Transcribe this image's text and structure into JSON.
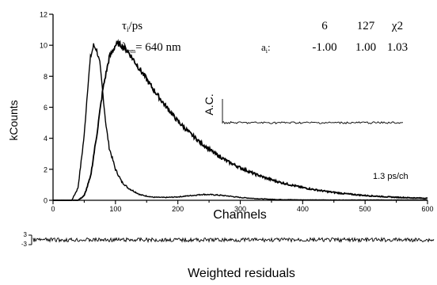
{
  "chart_data": {
    "type": "line",
    "xlabel": "Channels",
    "ylabel": "kCounts",
    "xlim": [
      0,
      600
    ],
    "ylim": [
      0,
      12
    ],
    "x_ticks": [
      0,
      100,
      200,
      300,
      400,
      500,
      600
    ],
    "y_ticks": [
      0,
      2,
      4,
      6,
      8,
      10,
      12
    ],
    "x_tick_labels": [
      "0",
      "100",
      "200",
      "300",
      "400",
      "500",
      "600"
    ],
    "y_tick_labels": [
      "0",
      "2",
      "4",
      "6",
      "8",
      "10",
      "12"
    ],
    "series": [
      {
        "points": [
          [
            0,
            0
          ],
          [
            30,
            0
          ],
          [
            40,
            0.8
          ],
          [
            50,
            4.2
          ],
          [
            55,
            7
          ],
          [
            60,
            9.2
          ],
          [
            65,
            10
          ],
          [
            70,
            9.7
          ],
          [
            75,
            8.8
          ],
          [
            80,
            6.8
          ],
          [
            85,
            4.8
          ],
          [
            90,
            3.4
          ],
          [
            100,
            2.0
          ],
          [
            110,
            1.2
          ],
          [
            120,
            0.8
          ],
          [
            140,
            0.35
          ],
          [
            160,
            0.2
          ],
          [
            180,
            0.18
          ],
          [
            200,
            0.22
          ],
          [
            220,
            0.3
          ],
          [
            240,
            0.38
          ],
          [
            260,
            0.35
          ],
          [
            280,
            0.28
          ],
          [
            300,
            0.18
          ],
          [
            330,
            0.1
          ],
          [
            360,
            0.05
          ],
          [
            400,
            0.03
          ],
          [
            450,
            0.02
          ],
          [
            500,
            0.02
          ],
          [
            600,
            0.02
          ]
        ]
      },
      {
        "points": [
          [
            0,
            0
          ],
          [
            40,
            0
          ],
          [
            50,
            0.3
          ],
          [
            60,
            1.5
          ],
          [
            70,
            4.2
          ],
          [
            80,
            7.2
          ],
          [
            90,
            9.2
          ],
          [
            100,
            10.0
          ],
          [
            105,
            10.1
          ],
          [
            110,
            10.0
          ],
          [
            120,
            9.6
          ],
          [
            130,
            9.0
          ],
          [
            140,
            8.4
          ],
          [
            150,
            7.8
          ],
          [
            160,
            7.2
          ],
          [
            180,
            6.1
          ],
          [
            200,
            5.1
          ],
          [
            220,
            4.3
          ],
          [
            240,
            3.6
          ],
          [
            260,
            3.0
          ],
          [
            280,
            2.5
          ],
          [
            300,
            2.1
          ],
          [
            320,
            1.75
          ],
          [
            340,
            1.45
          ],
          [
            360,
            1.2
          ],
          [
            380,
            1.0
          ],
          [
            400,
            0.82
          ],
          [
            420,
            0.68
          ],
          [
            440,
            0.56
          ],
          [
            460,
            0.46
          ],
          [
            480,
            0.38
          ],
          [
            500,
            0.31
          ],
          [
            520,
            0.26
          ],
          [
            540,
            0.21
          ],
          [
            560,
            0.18
          ],
          [
            580,
            0.15
          ],
          [
            600,
            0.13
          ]
        ]
      }
    ],
    "annotations": {
      "tau_label": "τ",
      "tau_sub": "i",
      "tau_unit": "/ps",
      "lambda_label": "λ",
      "lambda_sub": "em",
      "lambda_value": "= 640 nm",
      "a_label": "a",
      "a_sub": "i",
      "a_colon": ":",
      "tau_values": [
        "6",
        "127",
        "χ2"
      ],
      "a_values": [
        "-1.00",
        "1.00",
        "1.03"
      ],
      "ac_label": "A.C.",
      "resolution": "1.3 ps/ch"
    },
    "residuals": {
      "label": "Weighted residuals",
      "tick_labels": [
        "3",
        "-3"
      ]
    }
  },
  "colors": {
    "ink": "#000000",
    "background": "#ffffff"
  }
}
